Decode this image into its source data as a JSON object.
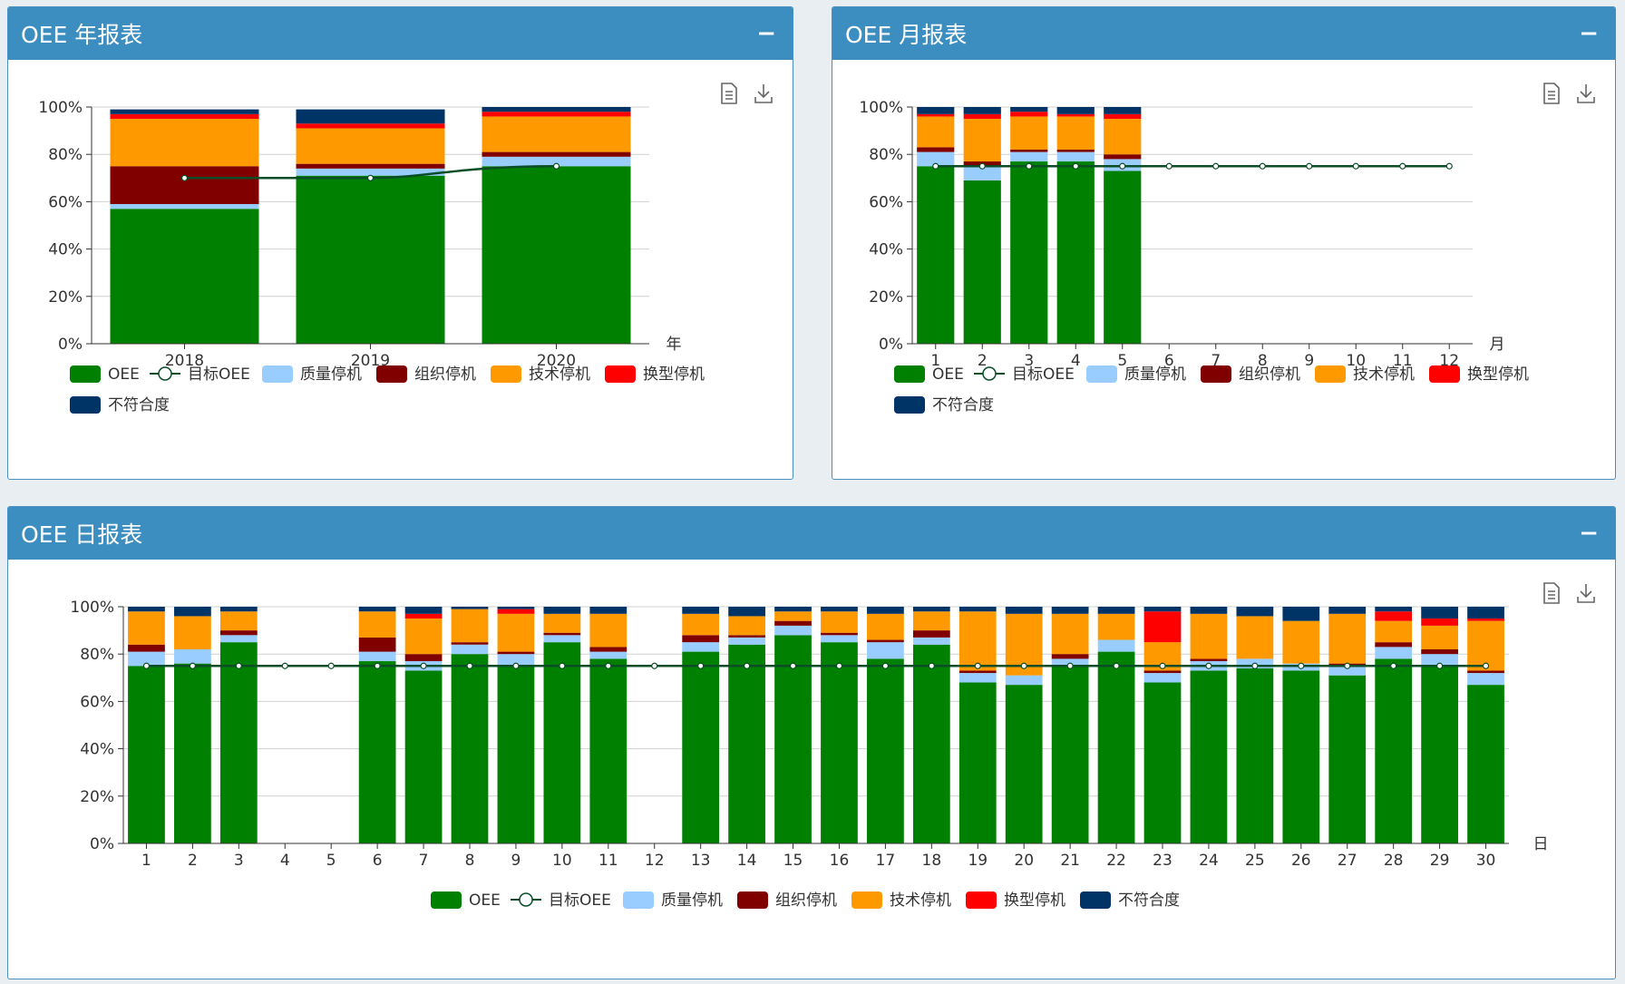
{
  "panels": {
    "year": {
      "title": "OEE 年报表",
      "collapse": "−"
    },
    "month": {
      "title": "OEE 月报表",
      "collapse": "−"
    },
    "day": {
      "title": "OEE 日报表",
      "collapse": "−"
    }
  },
  "toolbox": {
    "icons": [
      "data-view-icon",
      "download-icon"
    ]
  },
  "colors": {
    "OEE": "#008000",
    "目标OEE": "#0b4d26",
    "质量停机": "#99ccff",
    "组织停机": "#800000",
    "技术停机": "#ff9900",
    "换型停机": "#ff0000",
    "不符合度": "#003366"
  },
  "chart_data": [
    {
      "id": "year",
      "type": "bar",
      "stacked": true,
      "title": "OEE 年报表",
      "xlabel": "年",
      "yticks": [
        "0%",
        "20%",
        "40%",
        "60%",
        "80%",
        "100%"
      ],
      "ylim": [
        0,
        100
      ],
      "categories": [
        "2018",
        "2019",
        "2020"
      ],
      "series": [
        {
          "name": "OEE",
          "values": [
            57,
            71,
            75
          ]
        },
        {
          "name": "质量停机",
          "values": [
            2,
            3,
            4
          ]
        },
        {
          "name": "组织停机",
          "values": [
            16,
            2,
            2
          ]
        },
        {
          "name": "技术停机",
          "values": [
            20,
            15,
            15
          ]
        },
        {
          "name": "换型停机",
          "values": [
            2,
            2,
            2
          ]
        },
        {
          "name": "不符合度",
          "values": [
            2,
            6,
            2
          ]
        }
      ],
      "target": {
        "name": "目标OEE",
        "values": [
          70,
          70,
          75
        ]
      },
      "legend": [
        "OEE",
        "目标OEE",
        "质量停机",
        "组织停机",
        "技术停机",
        "换型停机",
        "不符合度"
      ]
    },
    {
      "id": "month",
      "type": "bar",
      "stacked": true,
      "title": "OEE 月报表",
      "xlabel": "月",
      "yticks": [
        "0%",
        "20%",
        "40%",
        "60%",
        "80%",
        "100%"
      ],
      "ylim": [
        0,
        100
      ],
      "categories": [
        "1",
        "2",
        "3",
        "4",
        "5",
        "6",
        "7",
        "8",
        "9",
        "10",
        "11",
        "12"
      ],
      "series": [
        {
          "name": "OEE",
          "values": [
            75,
            69,
            77,
            77,
            73,
            null,
            null,
            null,
            null,
            null,
            null,
            null
          ]
        },
        {
          "name": "质量停机",
          "values": [
            6,
            6,
            4,
            4,
            5,
            null,
            null,
            null,
            null,
            null,
            null,
            null
          ]
        },
        {
          "name": "组织停机",
          "values": [
            2,
            2,
            1,
            1,
            2,
            null,
            null,
            null,
            null,
            null,
            null,
            null
          ]
        },
        {
          "name": "技术停机",
          "values": [
            13,
            18,
            14,
            14,
            15,
            null,
            null,
            null,
            null,
            null,
            null,
            null
          ]
        },
        {
          "name": "换型停机",
          "values": [
            1,
            2,
            2,
            1,
            2,
            null,
            null,
            null,
            null,
            null,
            null,
            null
          ]
        },
        {
          "name": "不符合度",
          "values": [
            3,
            3,
            2,
            3,
            3,
            null,
            null,
            null,
            null,
            null,
            null,
            null
          ]
        }
      ],
      "target": {
        "name": "目标OEE",
        "values": [
          75,
          75,
          75,
          75,
          75,
          75,
          75,
          75,
          75,
          75,
          75,
          75
        ]
      },
      "legend": [
        "OEE",
        "目标OEE",
        "质量停机",
        "组织停机",
        "技术停机",
        "换型停机",
        "不符合度"
      ]
    },
    {
      "id": "day",
      "type": "bar",
      "stacked": true,
      "title": "OEE 日报表",
      "xlabel": "日",
      "yticks": [
        "0%",
        "20%",
        "40%",
        "60%",
        "80%",
        "100%"
      ],
      "ylim": [
        0,
        100
      ],
      "categories": [
        "1",
        "2",
        "3",
        "4",
        "5",
        "6",
        "7",
        "8",
        "9",
        "10",
        "11",
        "12",
        "13",
        "14",
        "15",
        "16",
        "17",
        "18",
        "19",
        "20",
        "21",
        "22",
        "23",
        "24",
        "25",
        "26",
        "27",
        "28",
        "29",
        "30"
      ],
      "series": [
        {
          "name": "OEE",
          "values": [
            75,
            76,
            85,
            null,
            null,
            77,
            73,
            80,
            75,
            85,
            78,
            null,
            81,
            84,
            88,
            85,
            78,
            84,
            68,
            67,
            75,
            81,
            68,
            73,
            74,
            73,
            71,
            78,
            75,
            67
          ]
        },
        {
          "name": "质量停机",
          "values": [
            6,
            6,
            3,
            null,
            null,
            4,
            4,
            4,
            5,
            3,
            3,
            null,
            4,
            3,
            4,
            3,
            7,
            3,
            4,
            4,
            3,
            5,
            4,
            4,
            4,
            3,
            4,
            5,
            5,
            5
          ]
        },
        {
          "name": "组织停机",
          "values": [
            3,
            0,
            2,
            null,
            null,
            6,
            3,
            1,
            1,
            1,
            2,
            null,
            3,
            1,
            2,
            1,
            1,
            3,
            1,
            0,
            2,
            0,
            1,
            1,
            0,
            0,
            1,
            2,
            2,
            1
          ]
        },
        {
          "name": "技术停机",
          "values": [
            14,
            14,
            8,
            null,
            null,
            11,
            15,
            14,
            16,
            8,
            14,
            null,
            9,
            8,
            4,
            9,
            11,
            8,
            25,
            26,
            17,
            11,
            12,
            19,
            18,
            18,
            21,
            9,
            10,
            21
          ]
        },
        {
          "name": "换型停机",
          "values": [
            0,
            0,
            0,
            null,
            null,
            0,
            2,
            0,
            2,
            0,
            0,
            null,
            0,
            0,
            0,
            0,
            0,
            0,
            0,
            0,
            0,
            0,
            13,
            0,
            0,
            0,
            0,
            4,
            3,
            1
          ]
        },
        {
          "name": "不符合度",
          "values": [
            2,
            4,
            2,
            null,
            null,
            2,
            3,
            1,
            1,
            3,
            3,
            null,
            3,
            4,
            2,
            2,
            3,
            2,
            2,
            3,
            3,
            3,
            2,
            3,
            4,
            6,
            3,
            2,
            5,
            5
          ]
        }
      ],
      "target": {
        "name": "目标OEE",
        "values": [
          75,
          75,
          75,
          75,
          75,
          75,
          75,
          75,
          75,
          75,
          75,
          75,
          75,
          75,
          75,
          75,
          75,
          75,
          75,
          75,
          75,
          75,
          75,
          75,
          75,
          75,
          75,
          75,
          75,
          75
        ]
      },
      "legend": [
        "OEE",
        "目标OEE",
        "质量停机",
        "组织停机",
        "技术停机",
        "换型停机",
        "不符合度"
      ]
    }
  ]
}
